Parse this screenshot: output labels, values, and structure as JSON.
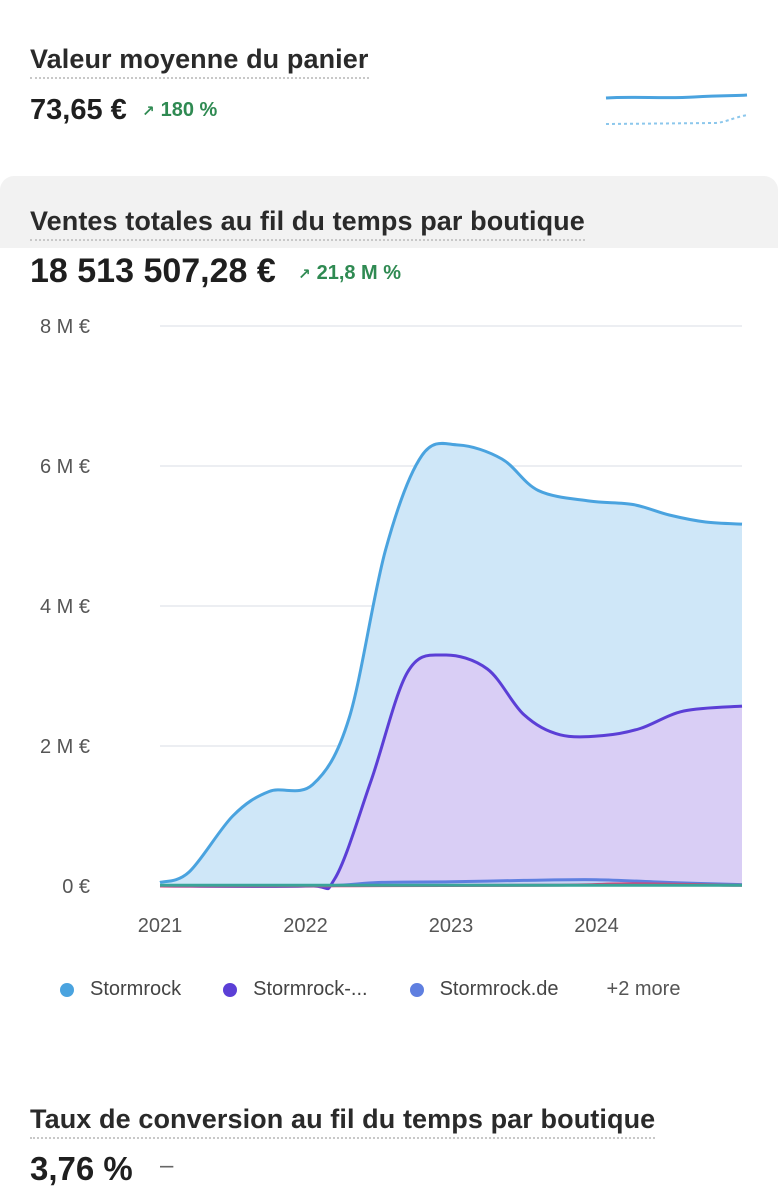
{
  "basket": {
    "title": "Valeur moyenne du panier",
    "value": "73,65 €",
    "delta": "180 %",
    "arrow": "↗"
  },
  "sales": {
    "title": "Ventes totales au fil du temps par boutique",
    "value": "18 513 507,28 €",
    "delta": "21,8 M %",
    "arrow": "↗"
  },
  "conversion": {
    "title": "Taux de conversion au fil du temps par boutique",
    "value": "3,76 %",
    "delta": "–"
  },
  "legend": {
    "items": [
      {
        "label": "Stormrock",
        "color": "#4aa3df"
      },
      {
        "label": "Stormrock-...",
        "color": "#5b3fd6"
      },
      {
        "label": "Stormrock.de",
        "color": "#5f7fe0"
      }
    ],
    "more": "+2 more"
  },
  "chart_data": {
    "type": "area",
    "y_tick_labels": [
      "0 €",
      "2 M €",
      "4 M €",
      "6 M €",
      "8 M €"
    ],
    "y_ticks": [
      0,
      2,
      4,
      6,
      8
    ],
    "ylim": [
      0,
      8
    ],
    "x_tick_labels": [
      "2021",
      "2022",
      "2023",
      "2024"
    ],
    "x_ticks": [
      2021,
      2022,
      2023,
      2024
    ],
    "xlim": [
      2021,
      2025
    ],
    "grid": true,
    "legend_position": "bottom",
    "series": [
      {
        "name": "Stormrock",
        "color": "#4aa3df",
        "fill": "#cfe7f8",
        "points": [
          [
            2021,
            0.05
          ],
          [
            2021.2,
            0.2
          ],
          [
            2021.5,
            1.0
          ],
          [
            2021.75,
            1.35
          ],
          [
            2022.05,
            1.45
          ],
          [
            2022.3,
            2.4
          ],
          [
            2022.55,
            4.8
          ],
          [
            2022.8,
            6.15
          ],
          [
            2023.05,
            6.3
          ],
          [
            2023.35,
            6.1
          ],
          [
            2023.6,
            5.65
          ],
          [
            2023.95,
            5.5
          ],
          [
            2024.25,
            5.45
          ],
          [
            2024.5,
            5.3
          ],
          [
            2024.75,
            5.2
          ],
          [
            2025,
            5.17
          ]
        ]
      },
      {
        "name": "Stormrock-...",
        "color": "#5b3fd6",
        "fill": "#d9cef5",
        "points": [
          [
            2021,
            0
          ],
          [
            2022.0,
            0
          ],
          [
            2022.2,
            0.1
          ],
          [
            2022.45,
            1.5
          ],
          [
            2022.7,
            3.05
          ],
          [
            2022.95,
            3.3
          ],
          [
            2023.25,
            3.1
          ],
          [
            2023.5,
            2.45
          ],
          [
            2023.75,
            2.16
          ],
          [
            2024.05,
            2.15
          ],
          [
            2024.3,
            2.25
          ],
          [
            2024.6,
            2.5
          ],
          [
            2025,
            2.57
          ]
        ]
      },
      {
        "name": "Stormrock.de",
        "color": "#5f7fe0",
        "fill": "#c9d2f3",
        "points": [
          [
            2021,
            0
          ],
          [
            2022.1,
            0
          ],
          [
            2022.5,
            0.05
          ],
          [
            2023,
            0.06
          ],
          [
            2023.5,
            0.08
          ],
          [
            2024,
            0.09
          ],
          [
            2024.5,
            0.05
          ],
          [
            2025,
            0.02
          ]
        ]
      },
      {
        "name": "",
        "color": "#d9417a",
        "fill": "none",
        "points": [
          [
            2021,
            0
          ],
          [
            2023.6,
            0.01
          ],
          [
            2024.2,
            0.03
          ],
          [
            2025,
            0.01
          ]
        ]
      },
      {
        "name": "",
        "color": "#3aa59a",
        "fill": "none",
        "points": [
          [
            2021,
            0.01
          ],
          [
            2025,
            0.01
          ]
        ]
      }
    ]
  }
}
